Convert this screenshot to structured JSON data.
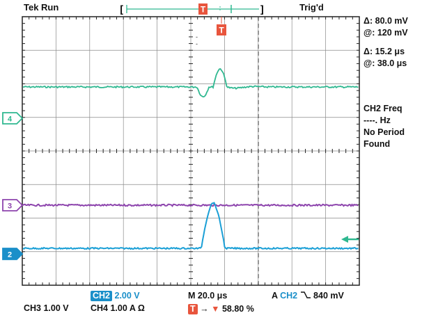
{
  "header": {
    "status": "Tek Run",
    "trigger_state": "Trig'd"
  },
  "trigger_marker": "T",
  "channel_markers": {
    "ch4": "4",
    "ch3": "3",
    "ch2": "2"
  },
  "colors": {
    "ch4": "#2fb890",
    "ch3": "#8d44ad",
    "ch2": "#1a9fd6",
    "trigger": "#e8553d",
    "grid": "#222222"
  },
  "readouts": {
    "delta_v": "Δ: 80.0 mV",
    "at_v": "@: 120 mV",
    "delta_t": "Δ: 15.2 μs",
    "at_t": "@: 38.0 μs",
    "meas_title": "CH2 Freq",
    "meas_value": "----. Hz",
    "meas_note1": "No Period",
    "meas_note2": "Found"
  },
  "footer": {
    "ch3_scale": "CH3  1.00 V",
    "ch2_label": "CH2",
    "ch2_scale": "2.00 V",
    "ch4_scale": "CH4  1.00 A Ω",
    "timebase": "M 20.0 μs",
    "trig_pos": "58.80 %",
    "trig_source_prefix": "A",
    "trig_source": "CH2",
    "trig_level": "840 mV"
  }
}
